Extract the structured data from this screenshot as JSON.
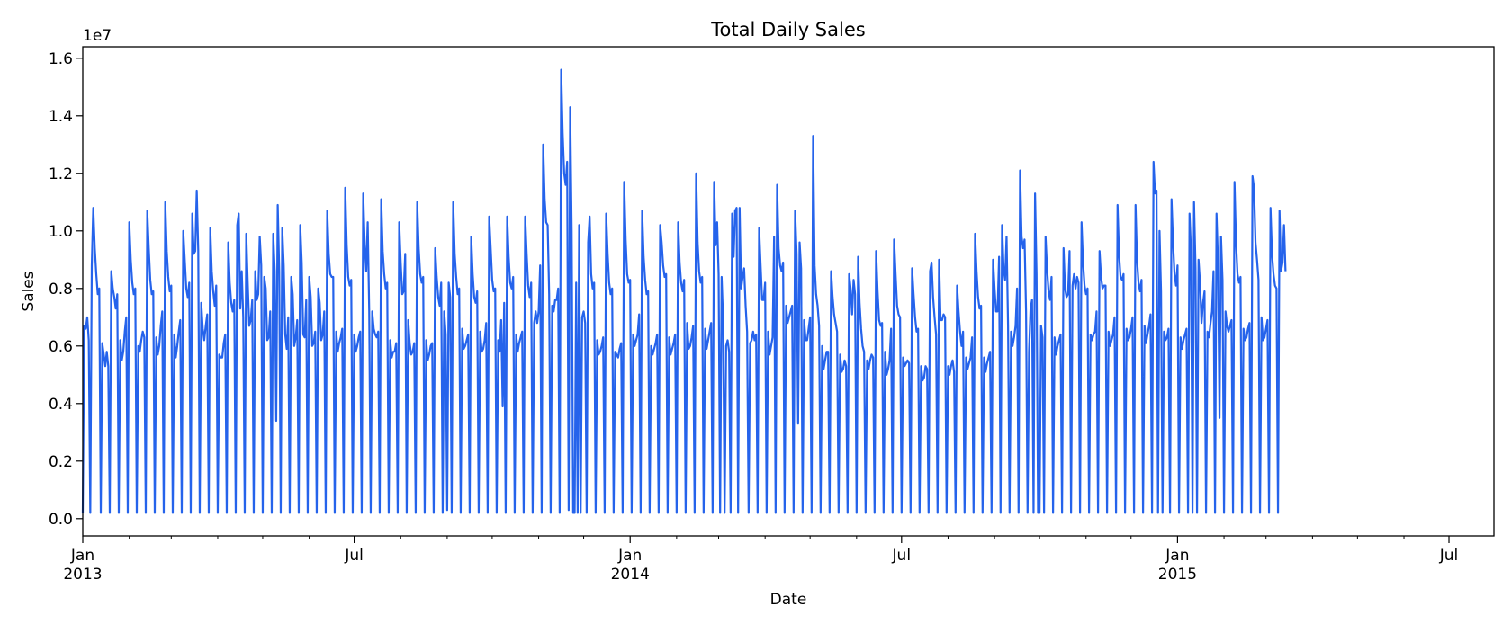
{
  "chart_data": {
    "type": "line",
    "title": "Total Daily Sales",
    "xlabel": "Date",
    "ylabel": "Sales",
    "y_offset_label": "1e7",
    "y_multiplier": 10000000,
    "xlim": [
      "2013-01-01",
      "2015-07-31"
    ],
    "ylim": [
      -0.06,
      1.64
    ],
    "yticks": [
      {
        "value": 0.0,
        "label": "0.0"
      },
      {
        "value": 0.2,
        "label": "0.2"
      },
      {
        "value": 0.4,
        "label": "0.4"
      },
      {
        "value": 0.6,
        "label": "0.6"
      },
      {
        "value": 0.8,
        "label": "0.8"
      },
      {
        "value": 1.0,
        "label": "1.0"
      },
      {
        "value": 1.2,
        "label": "1.2"
      },
      {
        "value": 1.4,
        "label": "1.4"
      },
      {
        "value": 1.6,
        "label": "1.6"
      }
    ],
    "xticks_major": [
      {
        "date": "2013-01-01",
        "label": "Jan",
        "sublabel": "2013"
      },
      {
        "date": "2013-07-01",
        "label": "Jul",
        "sublabel": ""
      },
      {
        "date": "2014-01-01",
        "label": "Jan",
        "sublabel": "2014"
      },
      {
        "date": "2014-07-01",
        "label": "Jul",
        "sublabel": ""
      },
      {
        "date": "2015-01-01",
        "label": "Jan",
        "sublabel": "2015"
      },
      {
        "date": "2015-07-01",
        "label": "Jul",
        "sublabel": ""
      }
    ],
    "xticks_minor": [
      "2013-02-01",
      "2013-03-01",
      "2013-04-01",
      "2013-05-01",
      "2013-06-01",
      "2013-08-01",
      "2013-09-01",
      "2013-10-01",
      "2013-11-01",
      "2013-12-01",
      "2014-02-01",
      "2014-03-01",
      "2014-04-01",
      "2014-05-01",
      "2014-06-01",
      "2014-08-01",
      "2014-09-01",
      "2014-10-01",
      "2014-11-01",
      "2014-12-01",
      "2015-02-01",
      "2015-03-01",
      "2015-04-01",
      "2015-05-01",
      "2015-06-01"
    ],
    "grid": false,
    "series": [
      {
        "color": "#2563eb",
        "x_start": "2013-01-01",
        "x_step_days": 1,
        "values": [
          0.02,
          0.67,
          0.66,
          0.7,
          0.62,
          0.02,
          0.88,
          1.08,
          0.94,
          0.85,
          0.78,
          0.8,
          0.02,
          0.61,
          0.57,
          0.53,
          0.58,
          0.53,
          0.02,
          0.86,
          0.8,
          0.77,
          0.73,
          0.78,
          0.02,
          0.62,
          0.55,
          0.58,
          0.65,
          0.7,
          0.02,
          1.03,
          0.9,
          0.82,
          0.78,
          0.8,
          0.02,
          0.6,
          0.58,
          0.62,
          0.65,
          0.63,
          0.02,
          1.07,
          0.94,
          0.83,
          0.78,
          0.79,
          0.02,
          0.63,
          0.57,
          0.6,
          0.67,
          0.72,
          0.02,
          1.1,
          0.93,
          0.84,
          0.79,
          0.81,
          0.02,
          0.64,
          0.56,
          0.6,
          0.65,
          0.69,
          0.02,
          1.0,
          0.9,
          0.8,
          0.77,
          0.82,
          0.02,
          1.06,
          0.92,
          0.93,
          1.14,
          0.93,
          0.02,
          0.75,
          0.66,
          0.62,
          0.67,
          0.71,
          0.02,
          1.01,
          0.86,
          0.79,
          0.74,
          0.81,
          0.02,
          0.57,
          0.56,
          0.56,
          0.61,
          0.64,
          0.02,
          0.96,
          0.82,
          0.75,
          0.72,
          0.76,
          0.02,
          1.02,
          1.06,
          0.73,
          0.86,
          0.7,
          0.02,
          0.99,
          0.82,
          0.67,
          0.69,
          0.76,
          0.02,
          0.86,
          0.76,
          0.78,
          0.98,
          0.88,
          0.02,
          0.84,
          0.8,
          0.62,
          0.63,
          0.72,
          0.02,
          0.99,
          0.86,
          0.34,
          1.09,
          0.86,
          0.02,
          1.01,
          0.88,
          0.64,
          0.59,
          0.7,
          0.02,
          0.84,
          0.78,
          0.6,
          0.63,
          0.69,
          0.02,
          1.02,
          0.89,
          0.64,
          0.63,
          0.76,
          0.02,
          0.84,
          0.77,
          0.6,
          0.61,
          0.65,
          0.02,
          0.8,
          0.75,
          0.62,
          0.64,
          0.72,
          0.02,
          1.07,
          0.92,
          0.85,
          0.84,
          0.84,
          0.02,
          0.65,
          0.58,
          0.61,
          0.63,
          0.66,
          0.02,
          1.15,
          0.95,
          0.84,
          0.81,
          0.83,
          0.02,
          0.64,
          0.58,
          0.6,
          0.63,
          0.65,
          0.02,
          1.13,
          0.95,
          0.86,
          1.03,
          0.72,
          0.02,
          0.72,
          0.66,
          0.64,
          0.63,
          0.65,
          0.02,
          1.11,
          0.93,
          0.85,
          0.8,
          0.82,
          0.02,
          0.62,
          0.56,
          0.58,
          0.58,
          0.61,
          0.02,
          1.03,
          0.89,
          0.78,
          0.79,
          0.92,
          0.02,
          0.69,
          0.61,
          0.57,
          0.58,
          0.61,
          0.02,
          1.1,
          0.94,
          0.85,
          0.82,
          0.84,
          0.02,
          0.62,
          0.55,
          0.57,
          0.6,
          0.61,
          0.02,
          0.94,
          0.84,
          0.77,
          0.74,
          0.82,
          0.02,
          0.72,
          0.64,
          0.03,
          0.82,
          0.77,
          0.02,
          1.1,
          0.92,
          0.84,
          0.78,
          0.8,
          0.02,
          0.66,
          0.59,
          0.6,
          0.62,
          0.64,
          0.02,
          0.98,
          0.85,
          0.77,
          0.75,
          0.79,
          0.02,
          0.65,
          0.58,
          0.59,
          0.62,
          0.68,
          0.02,
          1.05,
          0.94,
          0.83,
          0.79,
          0.8,
          0.02,
          0.62,
          0.58,
          0.69,
          0.39,
          0.75,
          0.02,
          1.05,
          0.91,
          0.82,
          0.8,
          0.84,
          0.02,
          0.64,
          0.58,
          0.61,
          0.63,
          0.65,
          0.02,
          1.05,
          0.92,
          0.81,
          0.77,
          0.82,
          0.02,
          0.68,
          0.72,
          0.68,
          0.72,
          0.88,
          0.02,
          1.3,
          1.11,
          1.03,
          1.02,
          0.78,
          0.02,
          0.74,
          0.72,
          0.76,
          0.76,
          0.8,
          0.02,
          1.56,
          1.34,
          1.2,
          1.16,
          1.24,
          0.03,
          1.43,
          1.0,
          0.02,
          0.02,
          0.82,
          0.02,
          1.02,
          0.02,
          0.7,
          0.72,
          0.68,
          0.02,
          0.96,
          1.05,
          0.85,
          0.8,
          0.82,
          0.02,
          0.62,
          0.57,
          0.58,
          0.6,
          0.63,
          0.02,
          1.06,
          0.92,
          0.82,
          0.78,
          0.8,
          0.02,
          0.58,
          0.57,
          0.56,
          0.59,
          0.61,
          0.02,
          1.17,
          0.97,
          0.85,
          0.82,
          0.83,
          0.02,
          0.64,
          0.6,
          0.62,
          0.64,
          0.71,
          0.02,
          1.07,
          0.91,
          0.83,
          0.78,
          0.79,
          0.02,
          0.6,
          0.57,
          0.59,
          0.61,
          0.64,
          0.02,
          1.02,
          0.96,
          0.88,
          0.84,
          0.85,
          0.02,
          0.63,
          0.57,
          0.59,
          0.61,
          0.64,
          0.02,
          1.03,
          0.89,
          0.82,
          0.79,
          0.83,
          0.02,
          0.68,
          0.59,
          0.6,
          0.63,
          0.67,
          0.02,
          1.2,
          0.96,
          0.86,
          0.82,
          0.84,
          0.02,
          0.66,
          0.59,
          0.62,
          0.65,
          0.68,
          0.02,
          1.17,
          0.95,
          1.03,
          0.85,
          0.02,
          0.84,
          0.69,
          0.02,
          0.6,
          0.62,
          0.58,
          0.02,
          1.06,
          0.91,
          1.07,
          1.08,
          0.02,
          1.08,
          0.8,
          0.84,
          0.87,
          0.74,
          0.65,
          0.02,
          0.61,
          0.62,
          0.65,
          0.62,
          0.64,
          0.02,
          1.01,
          0.88,
          0.76,
          0.76,
          0.82,
          0.02,
          0.65,
          0.57,
          0.6,
          0.63,
          0.98,
          0.02,
          1.16,
          0.94,
          0.88,
          0.86,
          0.89,
          0.02,
          0.74,
          0.68,
          0.7,
          0.72,
          0.74,
          0.02,
          1.07,
          0.92,
          0.33,
          0.96,
          0.87,
          0.02,
          0.69,
          0.62,
          0.62,
          0.66,
          0.7,
          0.02,
          1.33,
          0.88,
          0.78,
          0.74,
          0.67,
          0.02,
          0.6,
          0.52,
          0.55,
          0.58,
          0.58,
          0.02,
          0.86,
          0.77,
          0.71,
          0.68,
          0.65,
          0.02,
          0.57,
          0.51,
          0.52,
          0.55,
          0.53,
          0.02,
          0.85,
          0.8,
          0.71,
          0.83,
          0.78,
          0.02,
          0.91,
          0.75,
          0.66,
          0.6,
          0.58,
          0.02,
          0.55,
          0.52,
          0.55,
          0.57,
          0.56,
          0.02,
          0.93,
          0.79,
          0.69,
          0.67,
          0.68,
          0.02,
          0.58,
          0.5,
          0.52,
          0.55,
          0.66,
          0.02,
          0.97,
          0.85,
          0.74,
          0.71,
          0.7,
          0.02,
          0.56,
          0.53,
          0.54,
          0.55,
          0.54,
          0.02,
          0.87,
          0.78,
          0.7,
          0.65,
          0.66,
          0.02,
          0.53,
          0.48,
          0.49,
          0.53,
          0.52,
          0.02,
          0.86,
          0.89,
          0.77,
          0.7,
          0.64,
          0.02,
          0.9,
          0.69,
          0.69,
          0.71,
          0.7,
          0.02,
          0.53,
          0.5,
          0.53,
          0.55,
          0.51,
          0.02,
          0.81,
          0.72,
          0.65,
          0.6,
          0.65,
          0.02,
          0.56,
          0.52,
          0.54,
          0.56,
          0.63,
          0.02,
          0.99,
          0.86,
          0.77,
          0.73,
          0.74,
          0.02,
          0.56,
          0.51,
          0.54,
          0.56,
          0.58,
          0.02,
          0.9,
          0.8,
          0.72,
          0.72,
          0.91,
          0.02,
          1.02,
          0.87,
          0.83,
          0.98,
          0.67,
          0.02,
          0.65,
          0.6,
          0.63,
          0.67,
          0.8,
          0.02,
          1.21,
          0.98,
          0.94,
          0.97,
          0.72,
          0.02,
          0.58,
          0.73,
          0.76,
          0.02,
          1.13,
          0.85,
          0.02,
          0.02,
          0.67,
          0.63,
          0.02,
          0.98,
          0.87,
          0.79,
          0.76,
          0.84,
          0.02,
          0.63,
          0.57,
          0.6,
          0.62,
          0.64,
          0.02,
          0.94,
          0.8,
          0.77,
          0.78,
          0.93,
          0.02,
          0.81,
          0.85,
          0.8,
          0.84,
          0.82,
          0.02,
          1.03,
          0.89,
          0.81,
          0.78,
          0.8,
          0.02,
          0.64,
          0.62,
          0.64,
          0.65,
          0.72,
          0.02,
          0.93,
          0.84,
          0.8,
          0.81,
          0.81,
          0.02,
          0.65,
          0.6,
          0.62,
          0.64,
          0.7,
          0.02,
          1.09,
          0.92,
          0.84,
          0.83,
          0.85,
          0.02,
          0.66,
          0.62,
          0.63,
          0.66,
          0.7,
          0.02,
          1.09,
          0.9,
          0.82,
          0.79,
          0.83,
          0.02,
          0.67,
          0.61,
          0.64,
          0.67,
          0.71,
          0.02,
          1.24,
          1.13,
          1.14,
          0.02,
          1.0,
          0.79,
          0.02,
          0.65,
          0.62,
          0.63,
          0.66,
          0.02,
          1.11,
          0.96,
          0.85,
          0.81,
          0.88,
          0.02,
          0.63,
          0.59,
          0.62,
          0.64,
          0.66,
          0.02,
          1.06,
          0.93,
          0.02,
          1.1,
          0.87,
          0.02,
          0.9,
          0.82,
          0.68,
          0.75,
          0.79,
          0.02,
          0.65,
          0.63,
          0.68,
          0.72,
          0.86,
          0.02,
          1.06,
          0.89,
          0.35,
          0.98,
          0.83,
          0.02,
          0.72,
          0.67,
          0.65,
          0.67,
          0.69,
          0.02,
          1.17,
          0.96,
          0.85,
          0.82,
          0.84,
          0.02,
          0.66,
          0.62,
          0.63,
          0.66,
          0.68,
          0.02,
          1.19,
          1.15,
          0.96,
          0.9,
          0.83,
          0.02,
          0.7,
          0.62,
          0.63,
          0.66,
          0.69,
          0.02,
          1.08,
          0.92,
          0.85,
          0.81,
          0.8,
          0.02,
          1.07,
          0.86,
          0.89,
          1.02,
          0.86
        ]
      }
    ]
  }
}
